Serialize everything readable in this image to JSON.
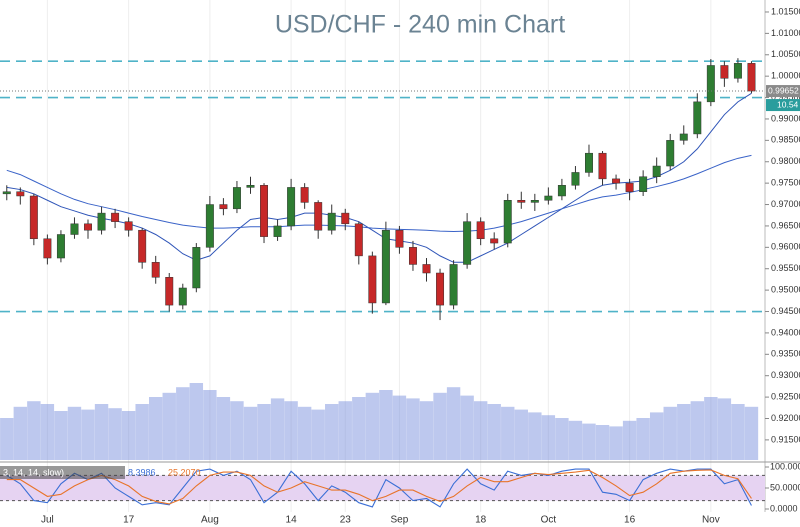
{
  "chart_data": {
    "type": "candlestick",
    "title": "USD/CHF - 240 min Chart",
    "ylim": [
      0.9103,
      1.0178
    ],
    "xlim": [
      -0.5,
      56
    ],
    "yticks": [
      {
        "value": 1.015,
        "label": "1.01500"
      },
      {
        "value": 1.01,
        "label": "1.01000"
      },
      {
        "value": 1.005,
        "label": "1.00500"
      },
      {
        "value": 1.0,
        "label": "1.00000"
      },
      {
        "value": 0.995,
        "label": "0.99500"
      },
      {
        "value": 0.99,
        "label": "0.99000"
      },
      {
        "value": 0.985,
        "label": "0.98500"
      },
      {
        "value": 0.98,
        "label": "0.98000"
      },
      {
        "value": 0.975,
        "label": "0.97500"
      },
      {
        "value": 0.97,
        "label": "0.97000"
      },
      {
        "value": 0.965,
        "label": "0.96500"
      },
      {
        "value": 0.96,
        "label": "0.96000"
      },
      {
        "value": 0.955,
        "label": "0.95500"
      },
      {
        "value": 0.95,
        "label": "0.95000"
      },
      {
        "value": 0.945,
        "label": "0.94500"
      },
      {
        "value": 0.94,
        "label": "0.94000"
      },
      {
        "value": 0.935,
        "label": "0.93500"
      },
      {
        "value": 0.93,
        "label": "0.93000"
      },
      {
        "value": 0.925,
        "label": "0.92500"
      },
      {
        "value": 0.92,
        "label": "0.92000"
      },
      {
        "value": 0.915,
        "label": "0.91500"
      }
    ],
    "xticks": [
      {
        "value": 3,
        "label": "Jul"
      },
      {
        "value": 9,
        "label": "17"
      },
      {
        "value": 15,
        "label": "Aug"
      },
      {
        "value": 21,
        "label": "14"
      },
      {
        "value": 25,
        "label": "23"
      },
      {
        "value": 29,
        "label": "Sep"
      },
      {
        "value": 35,
        "label": "18"
      },
      {
        "value": 40,
        "label": "Oct"
      },
      {
        "value": 46,
        "label": "16"
      },
      {
        "value": 52,
        "label": "Nov"
      }
    ],
    "up_color": "#2e7d32",
    "down_color": "#c62828",
    "open": [
      0.9725,
      0.973,
      0.972,
      0.962,
      0.9575,
      0.963,
      0.9655,
      0.964,
      0.968,
      0.966,
      0.964,
      0.9565,
      0.953,
      0.9465,
      0.9505,
      0.96,
      0.97,
      0.969,
      0.974,
      0.9745,
      0.9625,
      0.965,
      0.974,
      0.9705,
      0.964,
      0.968,
      0.9655,
      0.958,
      0.947,
      0.964,
      0.96,
      0.956,
      0.954,
      0.9465,
      0.956,
      0.966,
      0.962,
      0.961,
      0.971,
      0.9705,
      0.971,
      0.972,
      0.9745,
      0.9775,
      0.982,
      0.976,
      0.975,
      0.973,
      0.9765,
      0.979,
      0.985,
      0.9865,
      0.994,
      1.0025,
      0.9995,
      1.003
    ],
    "high": [
      0.9745,
      0.974,
      0.9725,
      0.963,
      0.964,
      0.967,
      0.9665,
      0.9695,
      0.969,
      0.967,
      0.9645,
      0.958,
      0.954,
      0.9515,
      0.961,
      0.972,
      0.9715,
      0.9755,
      0.9765,
      0.975,
      0.9665,
      0.976,
      0.975,
      0.971,
      0.97,
      0.969,
      0.966,
      0.959,
      0.966,
      0.965,
      0.9615,
      0.9575,
      0.955,
      0.957,
      0.968,
      0.967,
      0.9635,
      0.9725,
      0.973,
      0.9725,
      0.974,
      0.976,
      0.979,
      0.984,
      0.9825,
      0.977,
      0.976,
      0.978,
      0.981,
      0.9865,
      0.9885,
      0.996,
      1.004,
      1.0035,
      1.0042,
      1.0035
    ],
    "low": [
      0.971,
      0.97,
      0.9605,
      0.956,
      0.9565,
      0.962,
      0.962,
      0.963,
      0.9645,
      0.9625,
      0.955,
      0.9515,
      0.945,
      0.9455,
      0.9495,
      0.959,
      0.9675,
      0.968,
      0.9725,
      0.961,
      0.9615,
      0.964,
      0.969,
      0.962,
      0.963,
      0.964,
      0.956,
      0.9445,
      0.9465,
      0.9585,
      0.9545,
      0.952,
      0.943,
      0.9455,
      0.955,
      0.9605,
      0.9595,
      0.96,
      0.969,
      0.9685,
      0.97,
      0.971,
      0.9735,
      0.9765,
      0.9745,
      0.9735,
      0.971,
      0.972,
      0.975,
      0.978,
      0.984,
      0.9855,
      0.993,
      0.9975,
      0.9985,
      0.996
    ],
    "close": [
      0.973,
      0.972,
      0.962,
      0.9575,
      0.963,
      0.9655,
      0.964,
      0.968,
      0.966,
      0.964,
      0.9565,
      0.953,
      0.9465,
      0.9505,
      0.96,
      0.97,
      0.969,
      0.974,
      0.9745,
      0.9625,
      0.965,
      0.974,
      0.9705,
      0.964,
      0.968,
      0.9655,
      0.958,
      0.947,
      0.964,
      0.96,
      0.956,
      0.954,
      0.9465,
      0.956,
      0.966,
      0.962,
      0.961,
      0.971,
      0.9705,
      0.971,
      0.972,
      0.9745,
      0.9775,
      0.982,
      0.976,
      0.975,
      0.973,
      0.9765,
      0.979,
      0.985,
      0.9865,
      0.994,
      1.0025,
      0.9995,
      1.003,
      0.99652
    ],
    "moving_averages": [
      {
        "color": "#2f55b8",
        "values": [
          0.974,
          0.9735,
          0.9725,
          0.971,
          0.9695,
          0.9685,
          0.9675,
          0.9668,
          0.9662,
          0.9655,
          0.9645,
          0.963,
          0.961,
          0.9585,
          0.957,
          0.958,
          0.961,
          0.964,
          0.9665,
          0.967,
          0.9665,
          0.967,
          0.968,
          0.968,
          0.9675,
          0.967,
          0.966,
          0.964,
          0.962,
          0.9615,
          0.961,
          0.96,
          0.958,
          0.9565,
          0.9565,
          0.958,
          0.9595,
          0.961,
          0.963,
          0.965,
          0.967,
          0.969,
          0.971,
          0.973,
          0.9745,
          0.975,
          0.9752,
          0.9755,
          0.9765,
          0.978,
          0.98,
          0.983,
          0.987,
          0.991,
          0.994,
          0.996
        ]
      },
      {
        "color": "#3a63c8",
        "values": [
          0.978,
          0.977,
          0.9755,
          0.974,
          0.9725,
          0.9712,
          0.9702,
          0.9695,
          0.9688,
          0.968,
          0.9672,
          0.9665,
          0.9658,
          0.9652,
          0.9648,
          0.9645,
          0.9645,
          0.9646,
          0.9648,
          0.9648,
          0.9648,
          0.965,
          0.9652,
          0.9652,
          0.9651,
          0.965,
          0.9648,
          0.9645,
          0.9643,
          0.9642,
          0.9641,
          0.964,
          0.9638,
          0.9637,
          0.9638,
          0.964,
          0.9645,
          0.9652,
          0.966,
          0.967,
          0.968,
          0.969,
          0.97,
          0.971,
          0.9718,
          0.9722,
          0.9728,
          0.9735,
          0.9742,
          0.975,
          0.976,
          0.9772,
          0.9785,
          0.9798,
          0.9808,
          0.9815
        ]
      }
    ],
    "hlines": [
      1.0035,
      0.995,
      0.945
    ],
    "hline_color": "#4fb3c8",
    "last_price": {
      "value": 0.99652,
      "label": "0.99652"
    },
    "timer": "10.54",
    "volume": {
      "color": "#6d86d9",
      "ylim": [
        0,
        100
      ],
      "values": [
        30,
        38,
        42,
        40,
        35,
        38,
        36,
        40,
        37,
        35,
        40,
        45,
        48,
        52,
        55,
        50,
        45,
        42,
        38,
        40,
        44,
        42,
        38,
        36,
        40,
        42,
        45,
        48,
        50,
        46,
        44,
        42,
        48,
        52,
        46,
        42,
        40,
        38,
        36,
        34,
        32,
        30,
        28,
        26,
        25,
        24,
        28,
        30,
        34,
        38,
        40,
        42,
        45,
        44,
        40,
        38
      ]
    },
    "stochastic": {
      "label": "3, 14, 14, slow)",
      "ylim": [
        0,
        100
      ],
      "yticks": [
        {
          "value": 100,
          "label": "100.0000"
        },
        {
          "value": 50,
          "label": "50.0000"
        },
        {
          "value": 0,
          "label": "0.0000"
        }
      ],
      "levels": [
        80,
        20
      ],
      "k": {
        "color": "#3b6fd6",
        "values": [
          80,
          60,
          20,
          15,
          60,
          85,
          70,
          85,
          50,
          30,
          10,
          15,
          10,
          50,
          90,
          95,
          80,
          90,
          70,
          15,
          40,
          90,
          60,
          20,
          55,
          40,
          15,
          5,
          70,
          50,
          20,
          25,
          5,
          60,
          95,
          60,
          45,
          90,
          80,
          85,
          80,
          90,
          95,
          95,
          40,
          35,
          20,
          70,
          85,
          95,
          90,
          95,
          95,
          60,
          70,
          8.3986
        ]
      },
      "d": {
        "color": "#e8742a",
        "values": [
          70,
          70,
          50,
          30,
          35,
          55,
          70,
          80,
          70,
          55,
          30,
          18,
          12,
          25,
          55,
          80,
          88,
          88,
          80,
          55,
          40,
          50,
          65,
          55,
          45,
          45,
          35,
          20,
          30,
          45,
          45,
          30,
          18,
          30,
          55,
          75,
          65,
          65,
          75,
          85,
          82,
          85,
          88,
          92,
          75,
          55,
          32,
          40,
          60,
          85,
          90,
          92,
          93,
          80,
          72,
          25.207
        ]
      },
      "readout": [
        {
          "value": 8.3986,
          "label": "8.3986",
          "color": "#3b6fd6"
        },
        {
          "value": 25.207,
          "label": "25.2070",
          "color": "#e8742a"
        }
      ]
    }
  }
}
